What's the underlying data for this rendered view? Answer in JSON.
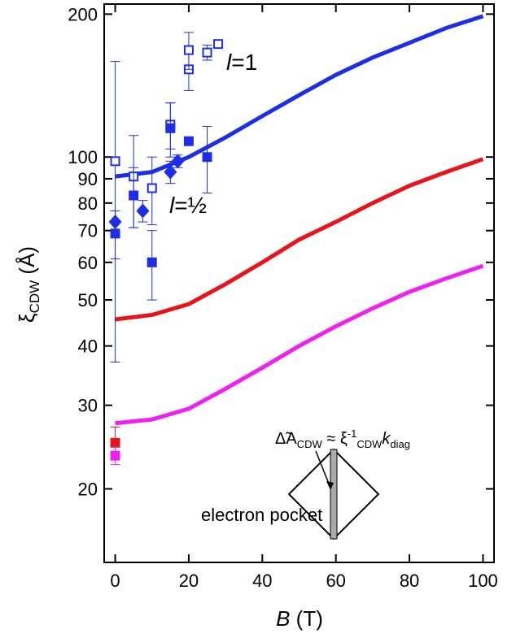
{
  "chart_data": {
    "type": "scatter",
    "x_label": [
      "B",
      " (T)"
    ],
    "y_label": [
      "ξ",
      "CDW",
      " (Å)"
    ],
    "xlim": [
      -3,
      103
    ],
    "xticks": [
      0,
      20,
      40,
      60,
      80,
      100
    ],
    "ylim": [
      14,
      210
    ],
    "yscale": "log",
    "yticks": [
      20,
      30,
      40,
      50,
      60,
      70,
      80,
      90,
      100,
      200
    ],
    "series": [
      {
        "mode": "line",
        "color": "#1e2ee6",
        "x": [
          0,
          10,
          20,
          30,
          40,
          50,
          60,
          70,
          80,
          90,
          100
        ],
        "values": [
          91,
          93,
          100,
          110,
          122,
          135,
          149,
          162,
          174,
          187,
          198
        ]
      },
      {
        "mode": "line",
        "color": "#e8141c",
        "x": [
          0,
          10,
          20,
          30,
          40,
          50,
          60,
          70,
          80,
          90,
          100
        ],
        "values": [
          45.5,
          46.5,
          49,
          54,
          60,
          67,
          73,
          80,
          87,
          93,
          99
        ]
      },
      {
        "mode": "line",
        "color": "#f020f0",
        "x": [
          0,
          10,
          20,
          30,
          40,
          50,
          60,
          70,
          80,
          90,
          100
        ],
        "values": [
          27.5,
          28,
          29.5,
          32.5,
          36,
          40,
          44,
          48,
          52,
          55.5,
          59
        ]
      },
      {
        "mode": "marker",
        "marker": "square-open",
        "color": "#1e2ee6",
        "x": [
          0,
          5,
          10,
          15,
          20,
          20,
          25,
          28
        ],
        "values": [
          98,
          91,
          86,
          117,
          153,
          168,
          166,
          173
        ],
        "errors": [
          61,
          20,
          14,
          13,
          15,
          15,
          6,
          null
        ]
      },
      {
        "mode": "marker",
        "marker": "square",
        "color": "#1e2ee6",
        "x": [
          0,
          5,
          10,
          15,
          20,
          25
        ],
        "values": [
          69,
          83,
          60,
          115,
          108,
          100
        ],
        "errors": [
          8,
          12,
          10,
          15,
          null,
          16
        ]
      },
      {
        "mode": "marker",
        "marker": "diamond",
        "color": "#1e2ee6",
        "x": [
          0,
          7.5,
          15,
          17
        ],
        "values": [
          73,
          77,
          93,
          98
        ],
        "errors": [
          4,
          4,
          5,
          3
        ]
      },
      {
        "mode": "marker",
        "marker": "square",
        "color": "#e8141c",
        "x": [
          0
        ],
        "values": [
          25
        ],
        "errors": [
          2
        ]
      },
      {
        "mode": "marker",
        "marker": "square",
        "color": "#f020f0",
        "x": [
          0
        ],
        "values": [
          23.5
        ],
        "errors": [
          1
        ]
      }
    ],
    "annotations": [
      {
        "parts": [
          "l",
          "=1"
        ]
      },
      {
        "parts": [
          "l",
          "=½"
        ]
      },
      {
        "parts": [
          "Δ̃A",
          "CDW",
          " ≈ ξ",
          "-1",
          "CDW",
          "k",
          "diag"
        ]
      },
      {
        "parts": [
          "electron pocket"
        ]
      }
    ]
  }
}
